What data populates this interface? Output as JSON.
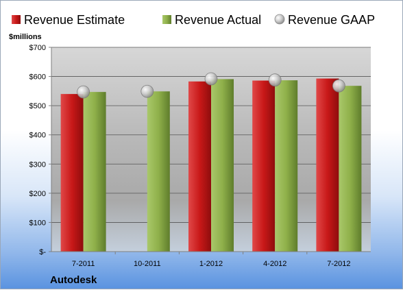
{
  "chart_data": {
    "type": "bar",
    "title": "",
    "company": "Autodesk",
    "ylabel": "$millions",
    "categories": [
      "7-2011",
      "10-2011",
      "1-2012",
      "4-2012",
      "7-2012"
    ],
    "ylim": [
      0,
      700
    ],
    "yticks": [
      {
        "value": 0,
        "label": "$-"
      },
      {
        "value": 100,
        "label": "$100"
      },
      {
        "value": 200,
        "label": "$200"
      },
      {
        "value": 300,
        "label": "$300"
      },
      {
        "value": 400,
        "label": "$400"
      },
      {
        "value": 500,
        "label": "$500"
      },
      {
        "value": 600,
        "label": "$600"
      },
      {
        "value": 700,
        "label": "$700"
      }
    ],
    "grid": true,
    "legend_position": "top",
    "series": [
      {
        "name": "Revenue Estimate",
        "kind": "bar",
        "color": "#cc1f1f",
        "values": [
          540,
          null,
          583,
          586,
          593
        ]
      },
      {
        "name": "Revenue Actual",
        "kind": "bar",
        "color": "#8fb04a",
        "values": [
          547,
          549,
          591,
          587,
          568
        ]
      },
      {
        "name": "Revenue GAAP",
        "kind": "marker",
        "color": "#c0c0c0",
        "values": [
          547,
          549,
          592,
          588,
          568
        ]
      }
    ]
  }
}
